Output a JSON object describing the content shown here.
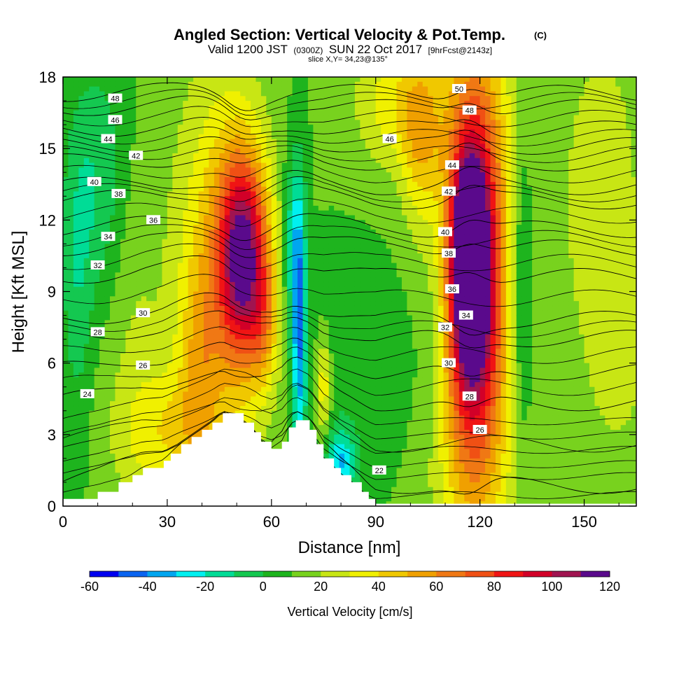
{
  "title": {
    "main": "Angled Section: Vertical Velocity & Pot.Temp.",
    "main_tag": "(C)",
    "valid_prefix": "Valid 1200 JST",
    "valid_zulu": "(0300Z)",
    "valid_date": "SUN 22 Oct 2017",
    "forecast": "[9hrFcst@2143z]",
    "slice": "slice X,Y= 34,23@135°"
  },
  "chart_data": {
    "type": "heatmap",
    "xlabel": "Distance [nm]",
    "ylabel": "Height [Kft MSL]",
    "xlim": [
      0,
      165
    ],
    "ylim": [
      0,
      18
    ],
    "x_ticks": [
      {
        "value": 0,
        "label": "0"
      },
      {
        "value": 30,
        "label": "30"
      },
      {
        "value": 60,
        "label": "60"
      },
      {
        "value": 90,
        "label": "90"
      },
      {
        "value": 120,
        "label": "120"
      },
      {
        "value": 150,
        "label": "150"
      }
    ],
    "y_ticks": [
      {
        "value": 0,
        "label": "0"
      },
      {
        "value": 3,
        "label": "3"
      },
      {
        "value": 6,
        "label": "6"
      },
      {
        "value": 9,
        "label": "9"
      },
      {
        "value": 12,
        "label": "12"
      },
      {
        "value": 15,
        "label": "15"
      },
      {
        "value": 18,
        "label": "18"
      }
    ],
    "colorbar": {
      "label": "Vertical Velocity [cm/s]",
      "range": [
        -60,
        120
      ],
      "step": 10,
      "colors": [
        "#0000f0",
        "#0a64f0",
        "#00a6f0",
        "#00f0f0",
        "#00dc96",
        "#14c850",
        "#1eb41e",
        "#78d21e",
        "#c8e614",
        "#f0f000",
        "#f0c800",
        "#f0a000",
        "#f07814",
        "#f05014",
        "#f01414",
        "#d20028",
        "#a01450",
        "#5a0a8c"
      ],
      "tick_labels": [
        "-60",
        "-40",
        "-20",
        "0",
        "20",
        "40",
        "60",
        "80",
        "100",
        "120"
      ]
    },
    "terrain_profile": [
      {
        "x": 0,
        "h": 0.3
      },
      {
        "x": 10,
        "h": 0.6
      },
      {
        "x": 16,
        "h": 1.0
      },
      {
        "x": 20,
        "h": 1.3
      },
      {
        "x": 23,
        "h": 1.6
      },
      {
        "x": 29,
        "h": 1.9
      },
      {
        "x": 31,
        "h": 2.2
      },
      {
        "x": 34,
        "h": 2.6
      },
      {
        "x": 37,
        "h": 2.9
      },
      {
        "x": 40,
        "h": 3.2
      },
      {
        "x": 43,
        "h": 3.5
      },
      {
        "x": 46,
        "h": 3.9
      },
      {
        "x": 52,
        "h": 3.5
      },
      {
        "x": 55,
        "h": 3.1
      },
      {
        "x": 57,
        "h": 2.7
      },
      {
        "x": 60,
        "h": 2.4
      },
      {
        "x": 63,
        "h": 2.7
      },
      {
        "x": 65,
        "h": 3.3
      },
      {
        "x": 67,
        "h": 3.6
      },
      {
        "x": 71,
        "h": 3.2
      },
      {
        "x": 73,
        "h": 2.6
      },
      {
        "x": 75,
        "h": 2.0
      },
      {
        "x": 78,
        "h": 1.6
      },
      {
        "x": 80,
        "h": 1.3
      },
      {
        "x": 83,
        "h": 1.0
      },
      {
        "x": 86,
        "h": 0.6
      },
      {
        "x": 88,
        "h": 0.3
      },
      {
        "x": 90,
        "h": 0.1
      },
      {
        "x": 165,
        "h": 0.1
      }
    ],
    "velocity_features": [
      {
        "x": 52,
        "y": 10.5,
        "sx": 5,
        "sy": 3.0,
        "w": 90
      },
      {
        "x": 58,
        "y": 7.5,
        "sx": 3,
        "sy": 2.0,
        "w": 25
      },
      {
        "x": 45,
        "y": 10.0,
        "sx": 9,
        "sy": 6.0,
        "w": 35
      },
      {
        "x": 39,
        "y": 6.0,
        "sx": 4,
        "sy": 3.0,
        "w": 20
      },
      {
        "x": 68,
        "y": 7.5,
        "sx": 1.5,
        "sy": 4.0,
        "w": -50
      },
      {
        "x": 66,
        "y": 11.0,
        "sx": 2.0,
        "sy": 2.5,
        "w": -25
      },
      {
        "x": 80,
        "y": 1.8,
        "sx": 3,
        "sy": 1.0,
        "w": -40
      },
      {
        "x": 75,
        "y": 5.0,
        "sx": 1.5,
        "sy": 1.5,
        "w": 30
      },
      {
        "x": 117,
        "y": 10.5,
        "sx": 2.5,
        "sy": 2.0,
        "w": 130
      },
      {
        "x": 118,
        "y": 9.0,
        "sx": 5.0,
        "sy": 4.5,
        "w": 80
      },
      {
        "x": 119,
        "y": 8.0,
        "sx": 9.0,
        "sy": 9.0,
        "w": 45
      },
      {
        "x": 103,
        "y": 15.5,
        "sx": 4.0,
        "sy": 2.5,
        "w": 30
      },
      {
        "x": 118,
        "y": 15.0,
        "sx": 6.0,
        "sy": 4.0,
        "w": 20
      },
      {
        "x": 95,
        "y": 17.0,
        "sx": 8.0,
        "sy": 2.0,
        "w": 25
      },
      {
        "x": 132,
        "y": 9.0,
        "sx": 2.5,
        "sy": 5.0,
        "w": -25
      },
      {
        "x": 107,
        "y": 8.5,
        "sx": 3.0,
        "sy": 4.0,
        "w": -10
      },
      {
        "x": 10,
        "y": 13.5,
        "sx": 6.0,
        "sy": 3.5,
        "w": -20
      },
      {
        "x": 4,
        "y": 9.0,
        "sx": 3.0,
        "sy": 4.0,
        "w": -15
      },
      {
        "x": 88,
        "y": 6.0,
        "sx": 12.0,
        "sy": 2.5,
        "w": -10
      },
      {
        "x": 30,
        "y": 3.0,
        "sx": 10.0,
        "sy": 2.0,
        "w": 25
      },
      {
        "x": 155,
        "y": 13.0,
        "sx": 10.0,
        "sy": 6.0,
        "w": 15
      },
      {
        "x": 160,
        "y": 6.0,
        "sx": 6.0,
        "sy": 3.0,
        "w": 10
      },
      {
        "x": 20,
        "y": 8.0,
        "sx": 6.0,
        "sy": 5.0,
        "w": 10
      }
    ],
    "velocity_background": 10,
    "theta_contours": [
      {
        "value": "22",
        "y": 0.8,
        "lx": 91,
        "ly": 1.5
      },
      {
        "value": "24",
        "y": 4.3,
        "lx": 7,
        "ly": 4.7
      },
      {
        "value": "26",
        "y": 5.6,
        "lx": 23,
        "ly": 5.9,
        "lx2": 120,
        "ly2": 3.2
      },
      {
        "value": "28",
        "y": 7.0,
        "lx": 10,
        "ly": 7.3,
        "lx2": 117,
        "ly2": 4.6
      },
      {
        "value": "30",
        "y": 7.8,
        "lx": 23,
        "ly": 8.1,
        "lx2": 111,
        "ly2": 6.0
      },
      {
        "value": "32",
        "y": 9.6,
        "lx": 10,
        "ly": 10.1,
        "lx2": 110,
        "ly2": 7.5
      },
      {
        "value": "34",
        "y": 10.8,
        "lx": 13,
        "ly": 11.3,
        "lx2": 116,
        "ly2": 8.0
      },
      {
        "value": "36",
        "y": 11.6,
        "lx": 26,
        "ly": 12.0,
        "lx2": 112,
        "ly2": 9.1
      },
      {
        "value": "38",
        "y": 12.8,
        "lx": 16,
        "ly": 13.1,
        "lx2": 111,
        "ly2": 10.6
      },
      {
        "value": "40",
        "y": 13.4,
        "lx": 9,
        "ly": 13.6,
        "lx2": 110,
        "ly2": 11.5
      },
      {
        "value": "42",
        "y": 14.4,
        "lx": 21,
        "ly": 14.7,
        "lx2": 111,
        "ly2": 13.2
      },
      {
        "value": "44",
        "y": 15.1,
        "lx": 13,
        "ly": 15.4,
        "lx2": 112,
        "ly2": 14.3
      },
      {
        "value": "46",
        "y": 15.8,
        "lx": 15,
        "ly": 16.2,
        "lx2": 94,
        "ly2": 15.4
      },
      {
        "value": "48",
        "y": 16.7,
        "lx": 15,
        "ly": 17.1,
        "lx2": 117,
        "ly2": 16.6
      },
      {
        "value": "50",
        "y": 17.3,
        "lx": 114,
        "ly": 17.5
      }
    ]
  }
}
